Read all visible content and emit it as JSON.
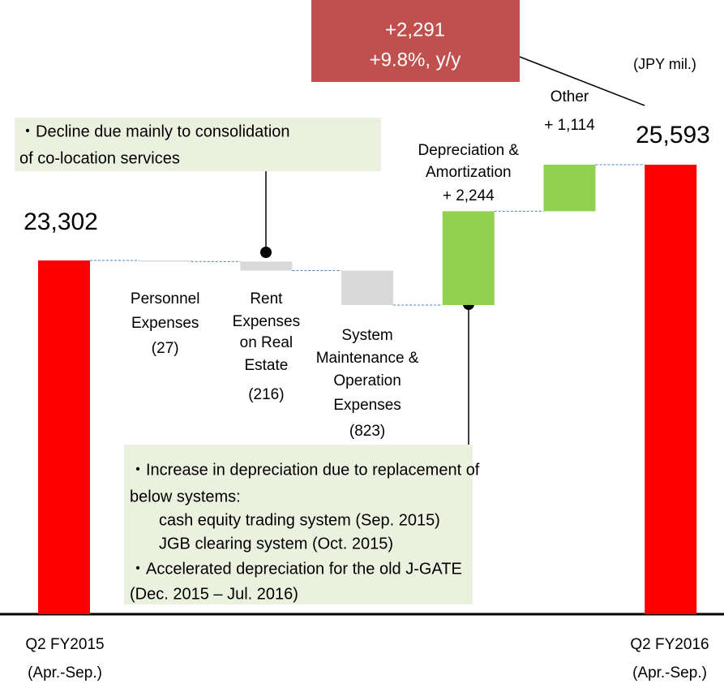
{
  "chart_data": {
    "type": "waterfall",
    "unit_label": "(JPY mil.)",
    "categories": [
      [
        "Q2 FY2015",
        "(Apr.-Sep.)"
      ],
      [
        "Personnel",
        "Expenses"
      ],
      [
        "Rent",
        "Expenses",
        "on Real",
        "Estate"
      ],
      [
        "System",
        "Maintenance &",
        "Operation",
        "Expenses"
      ],
      [
        "Depreciation &",
        "Amortization"
      ],
      [
        "Other"
      ],
      [
        "Q2 FY2016",
        "(Apr.-Sep.)"
      ]
    ],
    "values": [
      23302,
      -27,
      -216,
      -823,
      2244,
      1114,
      25593
    ],
    "value_labels": [
      "23,302",
      "(27)",
      "(216)",
      "(823)",
      "+ 2,244",
      "+ 1,114",
      "25,593"
    ],
    "measures": [
      "absolute",
      "relative",
      "relative",
      "relative",
      "relative",
      "relative",
      "absolute"
    ],
    "colors": [
      "#ff0000",
      "#d9d9d9",
      "#d9d9d9",
      "#d9d9d9",
      "#92d050",
      "#92d050",
      "#ff0000"
    ],
    "ylim": [
      14840,
      28000
    ],
    "total_change": [
      "+2,291",
      "+9.8%, y/y"
    ],
    "annotations": [
      {
        "lines": [
          "・Decline due mainly to consolidation",
          "of co-location services"
        ]
      },
      {
        "lines": [
          "・Increase in depreciation due to replacement of",
          "below systems:",
          "cash equity trading system (Sep. 2015)",
          "JGB clearing system (Oct. 2015)",
          "・Accelerated depreciation for the old J-GATE",
          "(Dec. 2015 – Jul. 2016)"
        ]
      }
    ]
  }
}
